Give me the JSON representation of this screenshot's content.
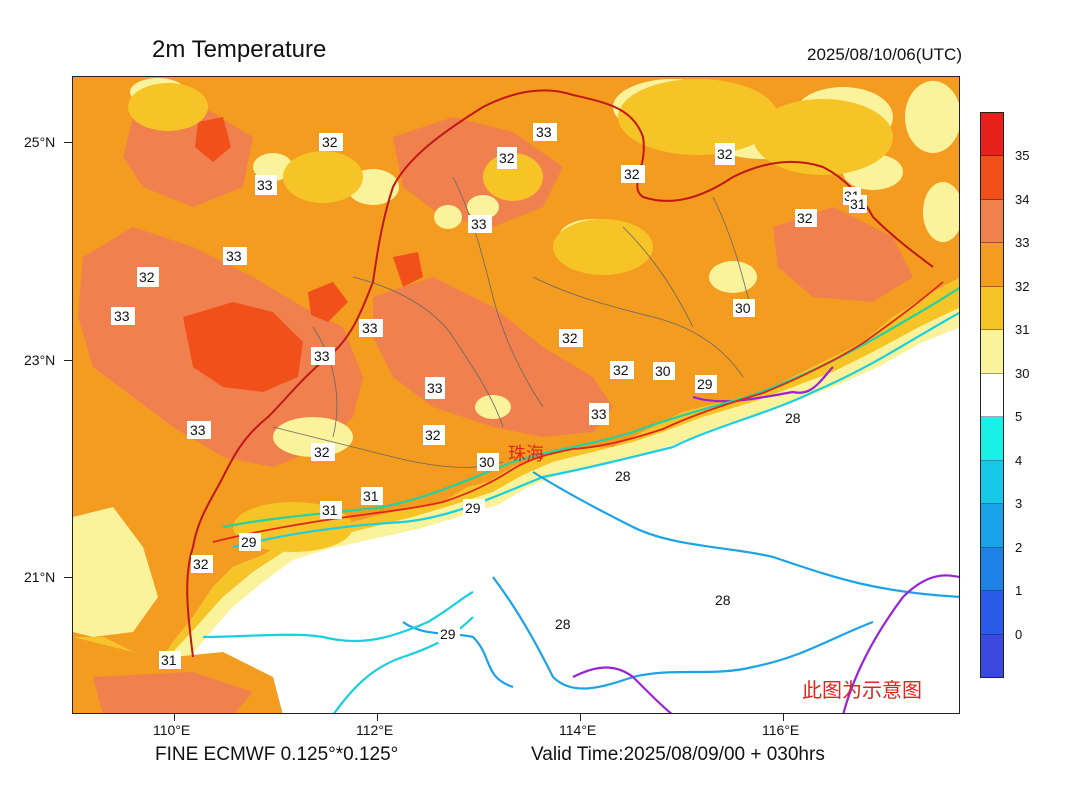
{
  "header": {
    "title": "2m Temperature",
    "datetime": "2025/08/10/06(UTC)"
  },
  "axes": {
    "lat_labels": [
      "25°N",
      "23°N",
      "21°N"
    ],
    "lon_labels": [
      "110°E",
      "112°E",
      "114°E",
      "116°E"
    ]
  },
  "footer": {
    "model": "FINE ECMWF 0.125°*0.125°",
    "valid_time": "Valid Time:2025/08/09/00 + 030hrs"
  },
  "colorbar": {
    "labels": [
      "35",
      "34",
      "33",
      "32",
      "31",
      "30",
      "5",
      "4",
      "3",
      "2",
      "1",
      "0"
    ],
    "colors": [
      "#e8201c",
      "#f2501a",
      "#f0804e",
      "#f39c20",
      "#f7c427",
      "#fbf39c",
      "#ffffff",
      "#19f0e8",
      "#18c8e8",
      "#1ba3e8",
      "#1d82e8",
      "#2a5be8",
      "#3a4ae0"
    ]
  },
  "annotations": {
    "city": "珠海",
    "watermark": "此图为示意图"
  },
  "map_data": {
    "variable": "2m Temperature",
    "lat_range": [
      19.7,
      25.7
    ],
    "lon_range": [
      109.0,
      117.8
    ],
    "contour_labels": [
      "32",
      "32",
      "33",
      "32",
      "32",
      "32",
      "31",
      "33",
      "33",
      "33",
      "33",
      "32",
      "33",
      "33",
      "32",
      "33",
      "32",
      "33",
      "32",
      "32",
      "30",
      "30",
      "30",
      "29",
      "31",
      "33",
      "31",
      "29",
      "29",
      "28",
      "28",
      "28",
      "28",
      "29",
      "32",
      "31",
      "31"
    ],
    "contour_colors": {
      "28": "#1ba3e8",
      "29": "#19cfe0",
      "30": "#22d3a0",
      "27": "#9a22d8"
    }
  }
}
